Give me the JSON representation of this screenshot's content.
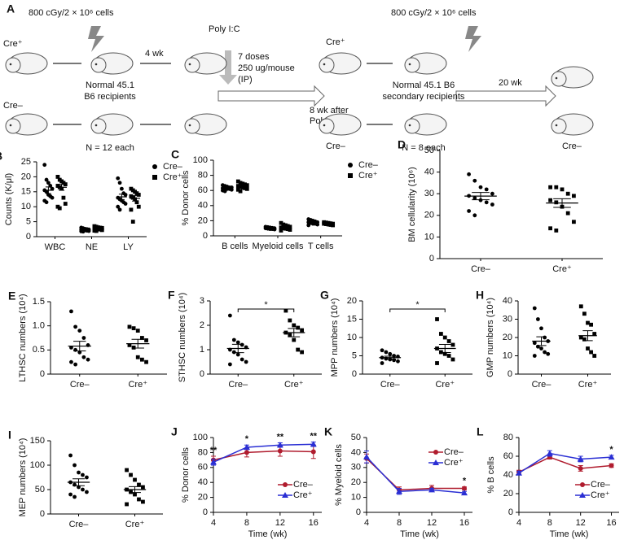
{
  "schematic": {
    "label": "A",
    "dose_1": "800 cGy/2 × 10⁶ cells",
    "cre_plus_1": "Cre⁺",
    "cre_minus_1": "Cre–",
    "four_wk": "4 wk",
    "poly_ic": "Poly I:C",
    "doses": "7 doses",
    "dose_amount": "250 ug/mouse",
    "route": "(IP)",
    "recipients_1a": "Normal 45.1",
    "recipients_1b": "B6 recipients",
    "n_1": "N = 12 each",
    "dose_2": "800 cGy/2 × 10⁶ cells",
    "cre_plus_2": "Cre⁺",
    "cre_minus_2": "Cre–",
    "after_a": "8 wk after",
    "after_b": "Poly I:C",
    "recipients_2a": "Normal 45.1 B6",
    "recipients_2b": "secondary recipients",
    "n_2": "N = 8 each",
    "twenty_wk": "20 wk",
    "cre_minus_3": "Cre–"
  },
  "chart_data": [
    {
      "type": "strip",
      "panel": "B",
      "ylabel": "Counts (K/μl)",
      "categories": [
        "WBC",
        "NE",
        "LY"
      ],
      "ylim": [
        0,
        25
      ],
      "yticks": [
        0,
        5,
        10,
        15,
        20,
        25
      ],
      "legend": "upper right",
      "series": [
        {
          "name": "Cre–",
          "marker": "circle",
          "color": "#000000",
          "values": [
            [
              24,
              19,
              18,
              17,
              16,
              15.5,
              15,
              14,
              13.5,
              13,
              12,
              11.5
            ],
            [
              3,
              2.8,
              2.6,
              2.5,
              2.4,
              2.3,
              2.2,
              2.1,
              2,
              1.9,
              1.8,
              1.7
            ],
            [
              19.5,
              18,
              16,
              14.5,
              14,
              13,
              12.5,
              12,
              11.5,
              11,
              10,
              9
            ]
          ],
          "means": [
            15.5,
            2.3,
            13.3
          ],
          "errors": [
            1.1,
            0.1,
            0.9
          ]
        },
        {
          "name": "Cre⁺",
          "marker": "square",
          "color": "#000000",
          "values": [
            [
              20,
              19,
              18.5,
              18,
              17.5,
              17,
              16.5,
              16,
              13,
              11,
              10,
              9.5
            ],
            [
              3.5,
              3.3,
              3.1,
              3,
              2.9,
              2.8,
              2.7,
              2.6,
              2.4,
              2.2,
              2,
              1.9
            ],
            [
              16,
              15.5,
              15,
              14.5,
              14,
              13.5,
              13,
              12.5,
              11.5,
              10,
              9,
              5
            ]
          ],
          "means": [
            16.5,
            2.7,
            12.8
          ],
          "errors": [
            1,
            0.15,
            0.9
          ]
        }
      ]
    },
    {
      "type": "strip",
      "panel": "C",
      "ylabel": "% Donor cells",
      "categories": [
        "B cells",
        "Myeloid cells",
        "T cells"
      ],
      "ylim": [
        0,
        100
      ],
      "yticks": [
        0,
        20,
        40,
        60,
        80,
        100
      ],
      "legend": "upper right",
      "series": [
        {
          "name": "Cre–",
          "marker": "circle",
          "color": "#000000",
          "values": [
            [
              67,
              66,
              65,
              64,
              64,
              63,
              63,
              62,
              62,
              61,
              60,
              59
            ],
            [
              12,
              11.5,
              11,
              10.5,
              10,
              10,
              9.5,
              9,
              9,
              8.5
            ],
            [
              22,
              21,
              20,
              19,
              18,
              18,
              17,
              16,
              16,
              15,
              14
            ]
          ],
          "means": [
            63.5,
            10,
            18
          ],
          "errors": [
            0.7,
            0.4,
            0.7
          ]
        },
        {
          "name": "Cre⁺",
          "marker": "square",
          "color": "#000000",
          "values": [
            [
              72,
              70,
              69,
              68,
              67,
              66,
              65,
              64,
              63,
              62,
              61,
              59
            ],
            [
              17,
              15,
              14,
              13,
              12,
              11,
              10,
              9.5,
              9,
              8,
              7
            ],
            [
              18,
              17.5,
              17,
              16.5,
              16,
              16,
              15.5,
              15,
              14.5,
              14
            ]
          ],
          "means": [
            65.5,
            11.5,
            16
          ],
          "errors": [
            1,
            0.9,
            0.5
          ]
        }
      ]
    },
    {
      "type": "strip",
      "panel": "D",
      "ylabel": "BM cellularity (10⁶)",
      "categories": [
        "Cre–",
        "Cre⁺"
      ],
      "markers": [
        "circle",
        "square"
      ],
      "ylim": [
        0,
        50
      ],
      "yticks": [
        0,
        10,
        20,
        30,
        40,
        50
      ],
      "values": [
        [
          39,
          36,
          33,
          32,
          30,
          29,
          28,
          27,
          26,
          25,
          22,
          20
        ],
        [
          33,
          33,
          32,
          30,
          29,
          27,
          26,
          24,
          21,
          17,
          14,
          13
        ]
      ],
      "means": [
        28.9,
        25.7
      ],
      "errors": [
        1.7,
        2
      ]
    },
    {
      "type": "strip",
      "panel": "E",
      "ylabel": "LTHSC numbers (10⁴)",
      "categories": [
        "Cre–",
        "Cre⁺"
      ],
      "markers": [
        "circle",
        "square"
      ],
      "ylim": [
        0,
        1.5
      ],
      "yticks": [
        0,
        0.5,
        {
          "value": 1,
          "label": "1.0"
        },
        1.5
      ],
      "values": [
        [
          1.3,
          0.98,
          0.9,
          0.75,
          0.6,
          0.55,
          0.5,
          0.45,
          0.35,
          0.3,
          0.25,
          0.2
        ],
        [
          0.98,
          0.95,
          0.9,
          0.75,
          0.7,
          0.6,
          0.55,
          0.35,
          0.3,
          0.25
        ]
      ],
      "means": [
        0.58,
        0.63
      ],
      "errors": [
        0.1,
        0.09
      ]
    },
    {
      "type": "strip",
      "panel": "F",
      "ylabel": "STHSC numbers (10⁴)",
      "categories": [
        "Cre–",
        "Cre⁺"
      ],
      "markers": [
        "circle",
        "square"
      ],
      "ylim": [
        0,
        3
      ],
      "yticks": [
        0,
        1,
        2,
        3
      ],
      "significance": "*",
      "values": [
        [
          2.4,
          1.4,
          1.3,
          1.2,
          1.1,
          1.0,
          0.9,
          0.8,
          0.6,
          0.5,
          0.4
        ],
        [
          2.6,
          2.2,
          2.0,
          1.9,
          1.8,
          1.7,
          1.6,
          1.4,
          1.0,
          0.9
        ]
      ],
      "means": [
        1.05,
        1.7
      ],
      "errors": [
        0.17,
        0.17
      ]
    },
    {
      "type": "strip",
      "panel": "G",
      "ylabel": "MPP numbers (10⁴)",
      "categories": [
        "Cre–",
        "Cre⁺"
      ],
      "markers": [
        "circle",
        "square"
      ],
      "ylim": [
        0,
        20
      ],
      "yticks": [
        0,
        5,
        10,
        15,
        20
      ],
      "significance": "*",
      "values": [
        [
          6.5,
          6,
          5.5,
          5,
          4.8,
          4.5,
          4.2,
          4,
          3.8,
          3.5,
          3
        ],
        [
          15,
          11,
          10,
          9,
          8,
          7,
          6,
          5.5,
          5,
          4,
          3
        ]
      ],
      "means": [
        4.5,
        7
      ],
      "errors": [
        0.4,
        1.1
      ]
    },
    {
      "type": "strip",
      "panel": "H",
      "ylabel": "GMP numbers (10⁴)",
      "categories": [
        "Cre–",
        "Cre⁺"
      ],
      "markers": [
        "circle",
        "square"
      ],
      "ylim": [
        0,
        40
      ],
      "yticks": [
        0,
        10,
        20,
        30,
        40
      ],
      "values": [
        [
          36,
          30,
          25,
          20,
          18,
          17,
          15,
          14,
          12,
          11,
          10
        ],
        [
          37,
          33,
          28,
          27,
          22,
          20,
          19,
          14,
          12,
          10
        ]
      ],
      "means": [
        18,
        21
      ],
      "errors": [
        2.4,
        2.7
      ]
    },
    {
      "type": "strip",
      "panel": "I",
      "ylabel": "MEP numbers (10⁴)",
      "categories": [
        "Cre–",
        "Cre⁺"
      ],
      "markers": [
        "circle",
        "square"
      ],
      "ylim": [
        0,
        150
      ],
      "yticks": [
        0,
        50,
        100,
        150
      ],
      "values": [
        [
          120,
          100,
          85,
          80,
          75,
          65,
          60,
          55,
          50,
          45,
          40,
          35
        ],
        [
          90,
          80,
          70,
          60,
          55,
          50,
          45,
          40,
          30,
          25,
          20
        ]
      ],
      "means": [
        65,
        50
      ],
      "errors": [
        7,
        6
      ]
    },
    {
      "type": "line",
      "panel": "J",
      "ylabel": "% Donor cells",
      "xlabel": "Time (wk)",
      "x": [
        4,
        8,
        12,
        16
      ],
      "xlim": [
        4,
        17
      ],
      "xticks": [
        4,
        8,
        12,
        16
      ],
      "ylim": [
        0,
        100
      ],
      "yticks": [
        0,
        20,
        40,
        60,
        80,
        100
      ],
      "legend": "lower right",
      "series": [
        {
          "name": "Cre–",
          "marker": "circle",
          "color": "#b01c2e",
          "values": [
            70,
            80,
            82,
            81
          ],
          "errors": [
            5,
            6,
            7,
            9
          ]
        },
        {
          "name": "Cre⁺",
          "marker": "triangle",
          "color": "#2a2fd4",
          "values": [
            67,
            87,
            90,
            91
          ],
          "errors": [
            4,
            3,
            3,
            3
          ]
        }
      ],
      "annotations": [
        {
          "x": 4,
          "text": "**"
        },
        {
          "x": 8,
          "text": "*"
        },
        {
          "x": 12,
          "text": "**"
        },
        {
          "x": 16,
          "text": "**"
        }
      ]
    },
    {
      "type": "line",
      "panel": "K",
      "ylabel": "% Myeloid cells",
      "xlabel": "Time (wk)",
      "x": [
        4,
        8,
        12,
        16
      ],
      "xlim": [
        4,
        17
      ],
      "xticks": [
        4,
        8,
        12,
        16
      ],
      "ylim": [
        0,
        50
      ],
      "yticks": [
        0,
        10,
        20,
        30,
        40,
        50
      ],
      "legend": "upper right",
      "series": [
        {
          "name": "Cre–",
          "marker": "circle",
          "color": "#b01c2e",
          "values": [
            36,
            15,
            16,
            16
          ],
          "errors": [
            3,
            2,
            2,
            1
          ]
        },
        {
          "name": "Cre⁺",
          "marker": "triangle",
          "color": "#2a2fd4",
          "values": [
            37,
            14,
            15,
            13
          ],
          "errors": [
            4,
            2,
            1,
            1
          ]
        }
      ],
      "annotations": [
        {
          "x": 16,
          "text": "*"
        }
      ]
    },
    {
      "type": "line",
      "panel": "L",
      "ylabel": "% B cells",
      "xlabel": "Time (wk)",
      "x": [
        4,
        8,
        12,
        16
      ],
      "xlim": [
        4,
        17
      ],
      "xticks": [
        4,
        8,
        12,
        16
      ],
      "ylim": [
        0,
        80
      ],
      "yticks": [
        0,
        20,
        40,
        60,
        80
      ],
      "legend": "lower right",
      "series": [
        {
          "name": "Cre–",
          "marker": "circle",
          "color": "#b01c2e",
          "values": [
            43,
            59,
            47,
            50
          ],
          "errors": [
            2,
            2,
            3,
            2
          ]
        },
        {
          "name": "Cre⁺",
          "marker": "triangle",
          "color": "#2a2fd4",
          "values": [
            42,
            63,
            57,
            59
          ],
          "errors": [
            2,
            3,
            3,
            2
          ]
        }
      ],
      "annotations": [
        {
          "x": 16,
          "text": "*"
        }
      ]
    }
  ]
}
